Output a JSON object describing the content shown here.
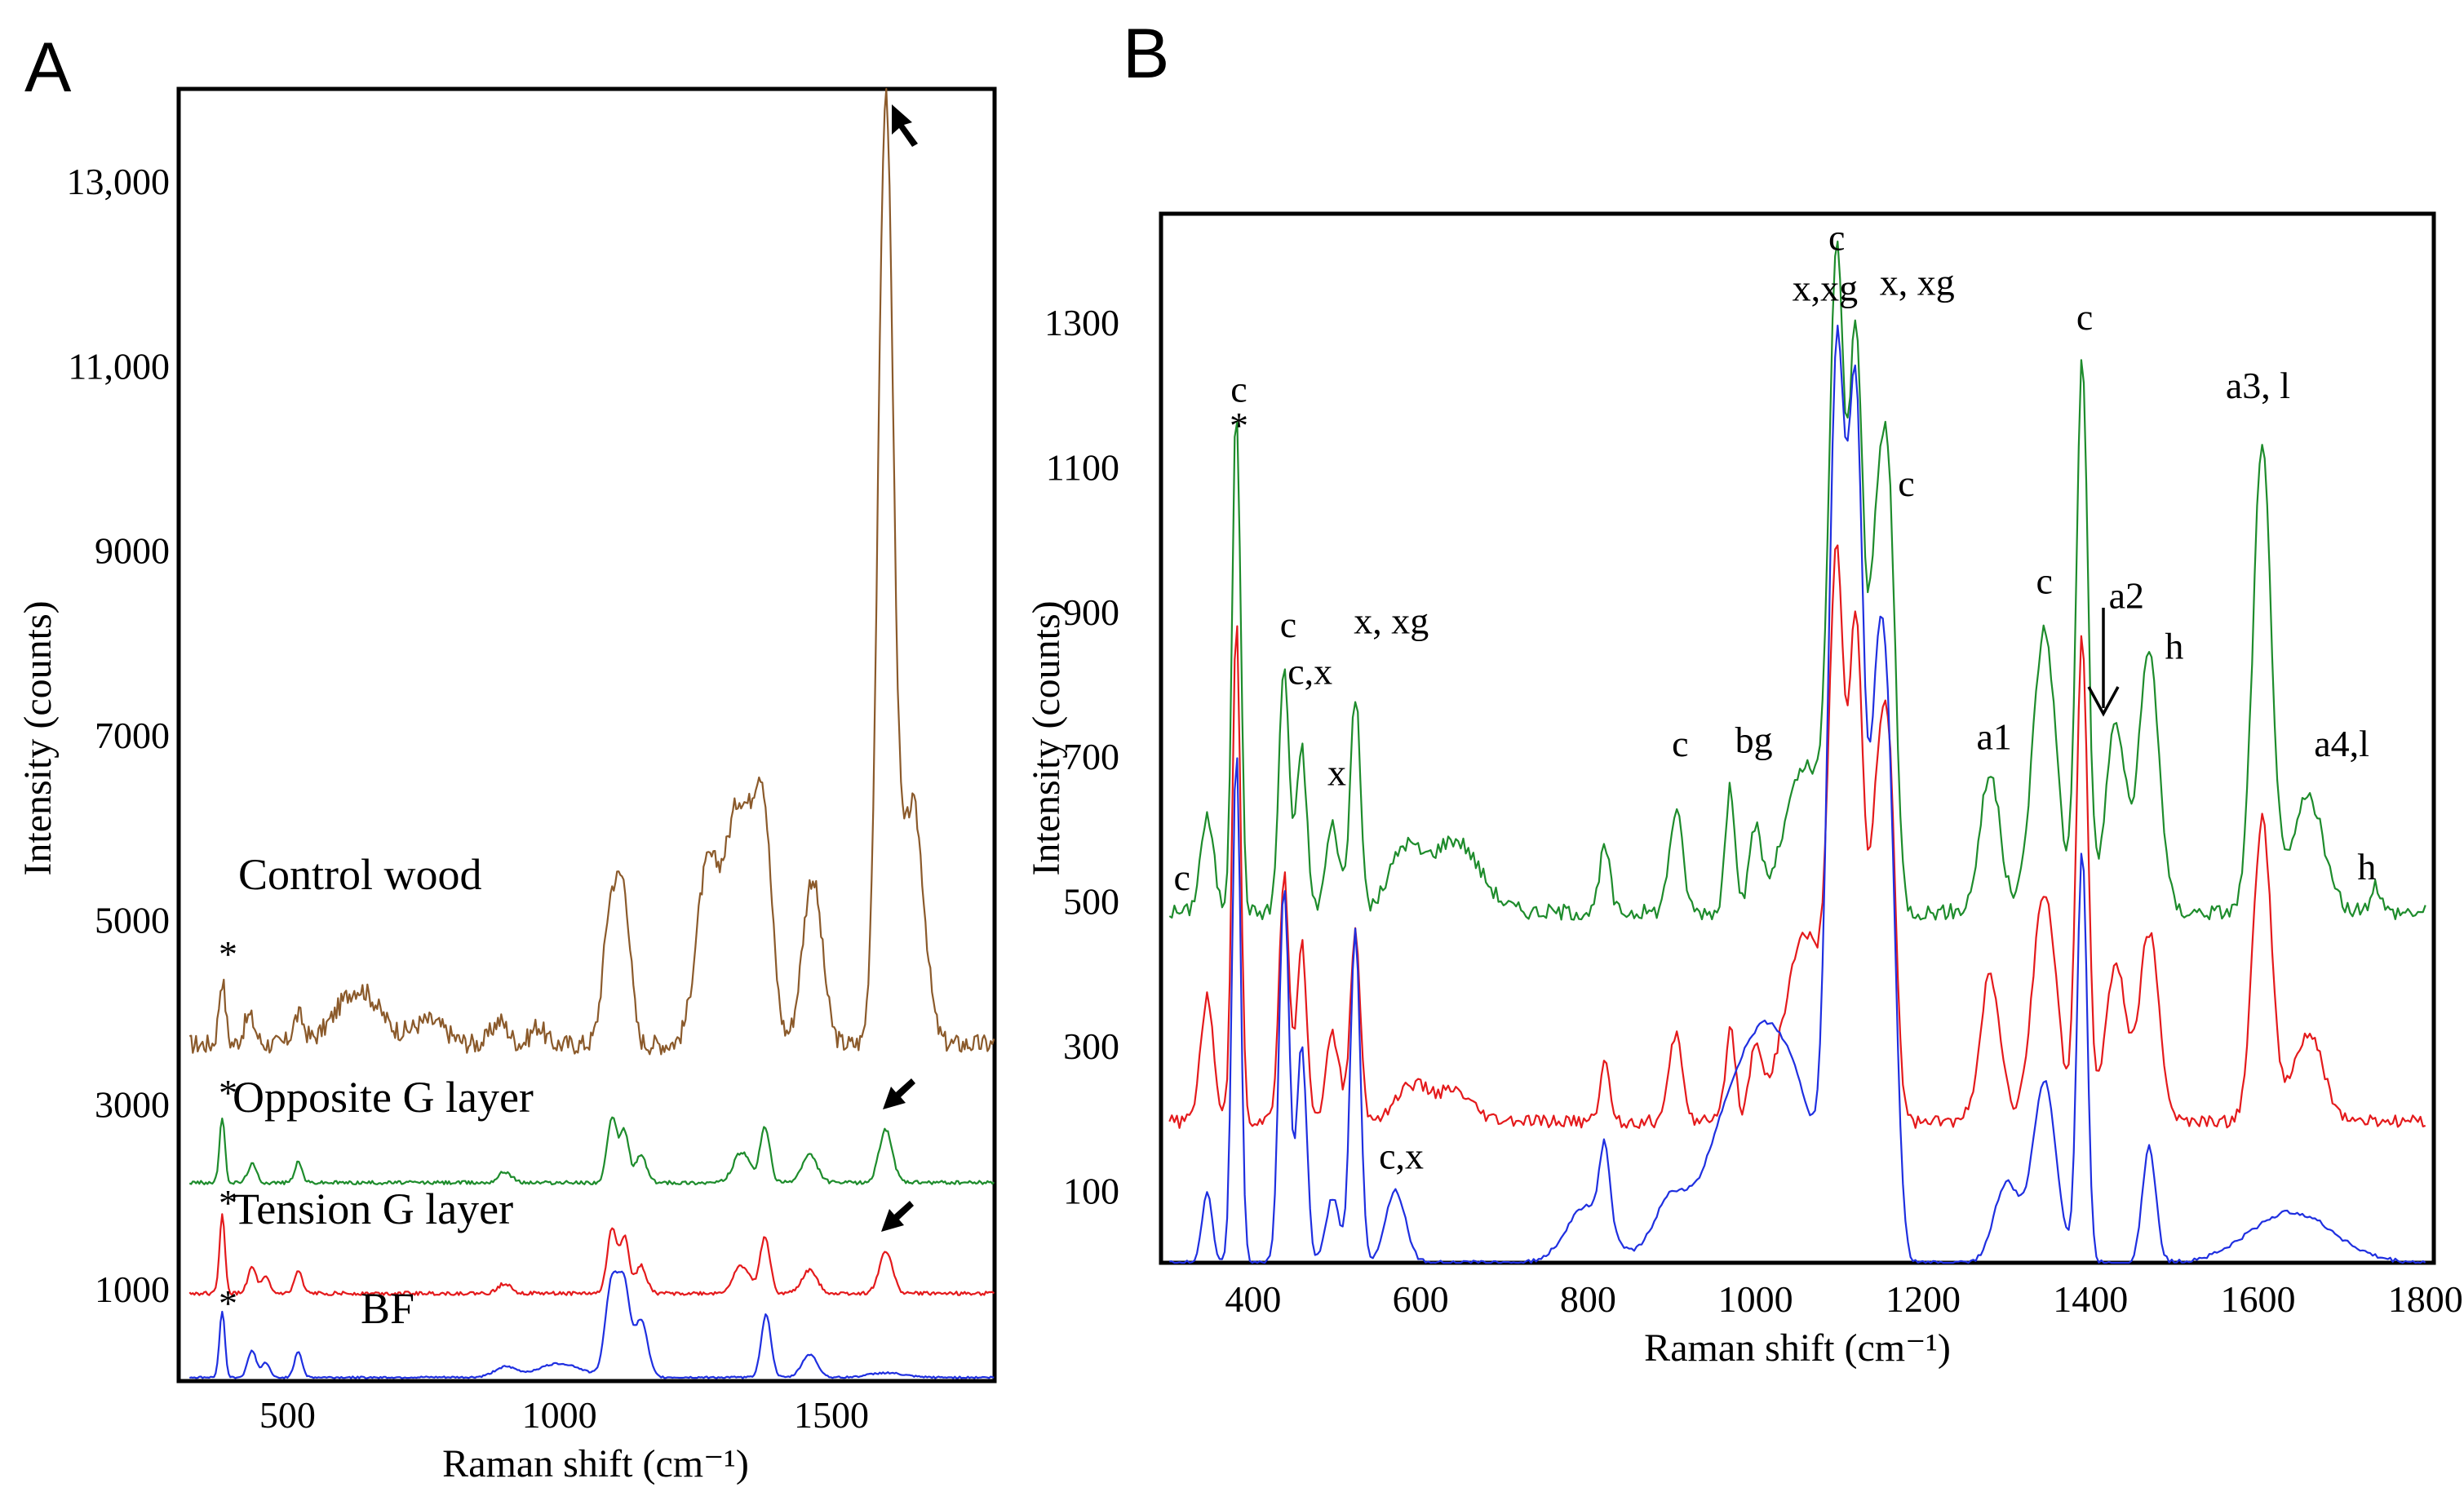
{
  "chart_data": [
    {
      "panel": "A",
      "type": "line",
      "xlabel": "Raman shift (cm⁻¹)",
      "ylabel": "Intensity (counts)",
      "xlim": [
        300,
        1800
      ],
      "ylim": [
        0,
        14000
      ],
      "xticks": [
        "500",
        "1000",
        "1500"
      ],
      "yticks": [
        "1000",
        "3000",
        "5000",
        "7000",
        "9000",
        "11,000",
        "13,000"
      ],
      "colors": {
        "control": "#8b5a2b",
        "opposite": "#1e8c2c",
        "tension": "#e41a1c",
        "bf": "#1f2fe0"
      },
      "series": [
        {
          "name": "Control wood",
          "key": "control",
          "baseline": 3650,
          "noise": 220,
          "peaks": [
            [
              380,
              700,
              6
            ],
            [
              430,
              300,
              10
            ],
            [
              520,
              300,
              10
            ],
            [
              630,
              600,
              40
            ],
            [
              760,
              250,
              30
            ],
            [
              890,
              250,
              15
            ],
            [
              960,
              200,
              12
            ],
            [
              1095,
              1500,
              14
            ],
            [
              1120,
              1400,
              12
            ],
            [
              1270,
              1700,
              20
            ],
            [
              1330,
              2600,
              28
            ],
            [
              1375,
              2100,
              16
            ],
            [
              1465,
              1800,
              18
            ],
            [
              1600,
              10200,
              14
            ],
            [
              1650,
              2600,
              20
            ]
          ]
        },
        {
          "name": "Opposite G layer",
          "key": "opposite",
          "baseline": 2150,
          "noise": 40,
          "peaks": [
            [
              380,
              700,
              5
            ],
            [
              435,
              200,
              8
            ],
            [
              520,
              220,
              7
            ],
            [
              900,
              120,
              12
            ],
            [
              1097,
              700,
              9
            ],
            [
              1120,
              550,
              8
            ],
            [
              1150,
              300,
              10
            ],
            [
              1335,
              330,
              15
            ],
            [
              1378,
              600,
              9
            ],
            [
              1460,
              300,
              14
            ],
            [
              1600,
              580,
              12
            ]
          ]
        },
        {
          "name": "Tension G layer",
          "key": "tension",
          "baseline": 950,
          "noise": 40,
          "peaks": [
            [
              380,
              850,
              5
            ],
            [
              435,
              280,
              8
            ],
            [
              460,
              170,
              7
            ],
            [
              520,
              240,
              7
            ],
            [
              900,
              110,
              12
            ],
            [
              1097,
              700,
              9
            ],
            [
              1120,
              600,
              8
            ],
            [
              1150,
              300,
              10
            ],
            [
              1335,
              300,
              15
            ],
            [
              1378,
              620,
              9
            ],
            [
              1460,
              250,
              14
            ],
            [
              1600,
              460,
              12
            ]
          ]
        },
        {
          "name": "BF",
          "key": "bf",
          "baseline": 40,
          "noise": 20,
          "peaks": [
            [
              380,
              720,
              5
            ],
            [
              435,
              290,
              8
            ],
            [
              460,
              160,
              7
            ],
            [
              520,
              280,
              7
            ],
            [
              900,
              110,
              20
            ],
            [
              1000,
              150,
              40
            ],
            [
              1097,
              1050,
              12
            ],
            [
              1120,
              900,
              10
            ],
            [
              1150,
              620,
              12
            ],
            [
              1380,
              680,
              9
            ],
            [
              1460,
              250,
              14
            ],
            [
              1600,
              50,
              30
            ]
          ]
        }
      ]
    },
    {
      "panel": "B",
      "type": "line",
      "xlabel": "Raman shift (cm⁻¹)",
      "ylabel": "Intensity (counts)",
      "xlim": [
        290,
        1810
      ],
      "ylim": [
        0,
        1450
      ],
      "xticks": [
        "400",
        "600",
        "800",
        "1000",
        "1200",
        "1400",
        "1600",
        "1800"
      ],
      "yticks": [
        "100",
        "300",
        "500",
        "700",
        "900",
        "1100",
        "1300"
      ],
      "colors": {
        "green": "#1e8c2c",
        "red": "#e41a1c",
        "blue": "#1f2fe0"
      },
      "series": [
        {
          "name": "green",
          "key": "green",
          "baseline": 485,
          "noise": 22,
          "peaks": [
            [
              345,
              130,
              8
            ],
            [
              380,
              700,
              5
            ],
            [
              437,
              340,
              6
            ],
            [
              458,
              230,
              6
            ],
            [
              495,
              120,
              8
            ],
            [
              522,
              300,
              6
            ],
            [
              580,
              80,
              18
            ],
            [
              640,
              100,
              30
            ],
            [
              820,
              90,
              6
            ],
            [
              905,
              140,
              8
            ],
            [
              970,
              170,
              6
            ],
            [
              1000,
              110,
              7
            ],
            [
              1060,
              200,
              25
            ],
            [
              1097,
              850,
              9
            ],
            [
              1120,
              760,
              8
            ],
            [
              1145,
              500,
              10
            ],
            [
              1160,
              450,
              8
            ],
            [
              1280,
              190,
              12
            ],
            [
              1345,
              390,
              14
            ],
            [
              1390,
              760,
              7
            ],
            [
              1430,
              260,
              12
            ],
            [
              1470,
              360,
              12
            ],
            [
              1605,
              640,
              11
            ],
            [
              1660,
              160,
              18
            ],
            [
              1740,
              40,
              6
            ]
          ]
        },
        {
          "name": "red",
          "key": "red",
          "baseline": 195,
          "noise": 18,
          "peaks": [
            [
              345,
              170,
              8
            ],
            [
              380,
              700,
              5
            ],
            [
              437,
              340,
              6
            ],
            [
              458,
              250,
              6
            ],
            [
              495,
              120,
              8
            ],
            [
              522,
              260,
              6
            ],
            [
              590,
              50,
              20
            ],
            [
              640,
              40,
              20
            ],
            [
              820,
              80,
              6
            ],
            [
              905,
              120,
              8
            ],
            [
              970,
              130,
              6
            ],
            [
              1000,
              100,
              7
            ],
            [
              1060,
              260,
              25
            ],
            [
              1097,
              700,
              9
            ],
            [
              1120,
              650,
              8
            ],
            [
              1145,
              420,
              10
            ],
            [
              1160,
              400,
              8
            ],
            [
              1280,
              200,
              12
            ],
            [
              1345,
              320,
              14
            ],
            [
              1390,
              670,
              7
            ],
            [
              1430,
              220,
              12
            ],
            [
              1470,
              260,
              12
            ],
            [
              1605,
              420,
              11
            ],
            [
              1660,
              120,
              18
            ]
          ]
        },
        {
          "name": "blue",
          "key": "blue",
          "baseline": 0,
          "noise": 6,
          "peaks": [
            [
              345,
              100,
              6
            ],
            [
              380,
              710,
              5
            ],
            [
              437,
              520,
              6
            ],
            [
              458,
              300,
              6
            ],
            [
              495,
              90,
              8
            ],
            [
              522,
              460,
              6
            ],
            [
              570,
              100,
              12
            ],
            [
              800,
              80,
              25
            ],
            [
              820,
              110,
              6
            ],
            [
              900,
              90,
              22
            ],
            [
              960,
              150,
              25
            ],
            [
              1000,
              150,
              25
            ],
            [
              1040,
              250,
              35
            ],
            [
              1097,
              1180,
              10
            ],
            [
              1120,
              1100,
              9
            ],
            [
              1145,
              700,
              10
            ],
            [
              1160,
              500,
              9
            ],
            [
              1300,
              110,
              15
            ],
            [
              1345,
              250,
              14
            ],
            [
              1390,
              570,
              6
            ],
            [
              1470,
              160,
              8
            ],
            [
              1640,
              70,
              50
            ]
          ]
        }
      ]
    }
  ],
  "panels": {
    "a": {
      "label": "A",
      "series_labels": {
        "control": "Control wood",
        "opposite": "Opposite G layer",
        "tension": "Tension  G layer",
        "bf": "BF"
      },
      "star": "*"
    },
    "b": {
      "label": "B",
      "annotations": [
        {
          "text": "c",
          "x": 315,
          "y": 515
        },
        {
          "text": "c",
          "x": 383,
          "y": 1190
        },
        {
          "text": "*",
          "x": 383,
          "y": 1140
        },
        {
          "text": "c",
          "x": 442,
          "y": 865
        },
        {
          "text": "c,x",
          "x": 468,
          "y": 800
        },
        {
          "text": "x",
          "x": 500,
          "y": 660
        },
        {
          "text": "x, xg",
          "x": 565,
          "y": 870
        },
        {
          "text": "c,x",
          "x": 577,
          "y": 130
        },
        {
          "text": "c",
          "x": 910,
          "y": 700
        },
        {
          "text": "bg",
          "x": 998,
          "y": 705
        },
        {
          "text": "c",
          "x": 1097,
          "y": 1400
        },
        {
          "text": "x,xg",
          "x": 1083,
          "y": 1330
        },
        {
          "text": "x, xg",
          "x": 1193,
          "y": 1338
        },
        {
          "text": "c",
          "x": 1180,
          "y": 1060
        },
        {
          "text": "c",
          "x": 1345,
          "y": 925
        },
        {
          "text": "c",
          "x": 1393,
          "y": 1290
        },
        {
          "text": "a1",
          "x": 1285,
          "y": 710
        },
        {
          "text": "a2",
          "x": 1443,
          "y": 905
        },
        {
          "text": "h",
          "x": 1500,
          "y": 835
        },
        {
          "text": "a3, l",
          "x": 1600,
          "y": 1195
        },
        {
          "text": "a4,l",
          "x": 1700,
          "y": 700
        },
        {
          "text": "h",
          "x": 1730,
          "y": 530
        }
      ]
    }
  }
}
